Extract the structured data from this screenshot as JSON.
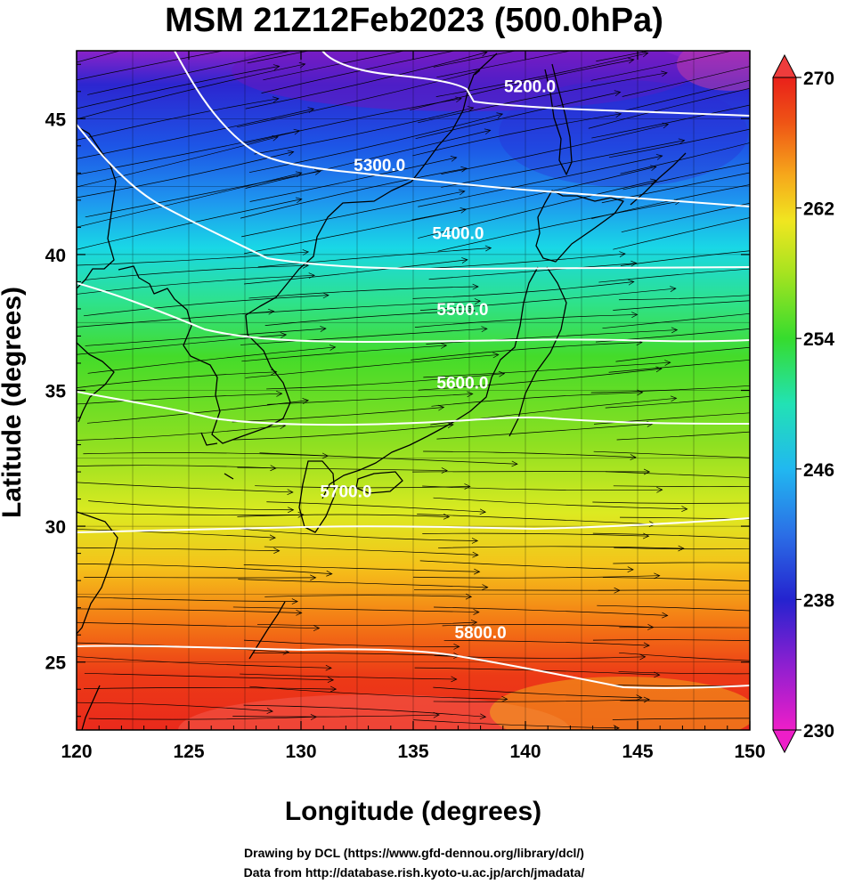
{
  "title": "MSM 21Z12Feb2023 (500.0hPa)",
  "xaxis": {
    "label": "Longitude (degrees)",
    "ticks": [
      "120",
      "125",
      "130",
      "135",
      "140",
      "145",
      "150"
    ]
  },
  "yaxis": {
    "label": "Latitude  (degrees)",
    "ticks": [
      "25",
      "30",
      "35",
      "40",
      "45"
    ]
  },
  "colorbar": {
    "ticks": [
      "230",
      "238",
      "246",
      "254",
      "262",
      "270"
    ],
    "min": 230,
    "max": 270
  },
  "contours": [
    {
      "label": "5200.0",
      "lon": 140.2,
      "lat": 46.2
    },
    {
      "label": "5300.0",
      "lon": 133.5,
      "lat": 43.3
    },
    {
      "label": "5400.0",
      "lon": 137.0,
      "lat": 40.8
    },
    {
      "label": "5500.0",
      "lon": 137.2,
      "lat": 38.0
    },
    {
      "label": "5600.0",
      "lon": 137.2,
      "lat": 35.3
    },
    {
      "label": "5700.0",
      "lon": 132.0,
      "lat": 31.3
    },
    {
      "label": "5800.0",
      "lon": 138.0,
      "lat": 26.1
    }
  ],
  "credits": {
    "line1": "Drawing by DCL (https://www.gfd-dennou.org/library/dcl/)",
    "line2": "Data from http://database.rish.kyoto-u.ac.jp/arch/jmadata/"
  },
  "map_extent": {
    "lon": [
      120,
      150
    ],
    "lat": [
      22.5,
      47.5
    ]
  },
  "colors": {
    "contour": "#ffffff",
    "streamline": "#000000",
    "coast": "#000000"
  }
}
